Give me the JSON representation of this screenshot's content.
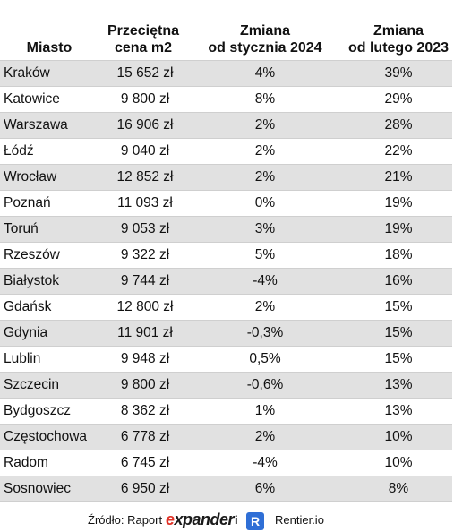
{
  "headers": {
    "city": "Miasto",
    "price_line1": "Przeciętna",
    "price_line2": "cena m2",
    "jan_line1": "Zmiana",
    "jan_line2": "od stycznia 2024",
    "feb_line1": "Zmiana",
    "feb_line2": "od lutego 2023"
  },
  "rows": [
    {
      "city": "Kraków",
      "price": "15 652 zł",
      "jan": "4%",
      "feb": "39%"
    },
    {
      "city": "Katowice",
      "price": "9 800 zł",
      "jan": "8%",
      "feb": "29%"
    },
    {
      "city": "Warszawa",
      "price": "16 906 zł",
      "jan": "2%",
      "feb": "28%"
    },
    {
      "city": "Łódź",
      "price": "9 040 zł",
      "jan": "2%",
      "feb": "22%"
    },
    {
      "city": "Wrocław",
      "price": "12 852 zł",
      "jan": "2%",
      "feb": "21%"
    },
    {
      "city": "Poznań",
      "price": "11 093 zł",
      "jan": "0%",
      "feb": "19%"
    },
    {
      "city": "Toruń",
      "price": "9 053 zł",
      "jan": "3%",
      "feb": "19%"
    },
    {
      "city": "Rzeszów",
      "price": "9 322 zł",
      "jan": "5%",
      "feb": "18%"
    },
    {
      "city": "Białystok",
      "price": "9 744 zł",
      "jan": "-4%",
      "feb": "16%"
    },
    {
      "city": "Gdańsk",
      "price": "12 800 zł",
      "jan": "2%",
      "feb": "15%"
    },
    {
      "city": "Gdynia",
      "price": "11 901 zł",
      "jan": "-0,3%",
      "feb": "15%"
    },
    {
      "city": "Lublin",
      "price": "9 948 zł",
      "jan": "0,5%",
      "feb": "15%"
    },
    {
      "city": "Szczecin",
      "price": "9 800 zł",
      "jan": "-0,6%",
      "feb": "13%"
    },
    {
      "city": "Bydgoszcz",
      "price": "8 362 zł",
      "jan": "1%",
      "feb": "13%"
    },
    {
      "city": "Częstochowa",
      "price": "6 778 zł",
      "jan": "2%",
      "feb": "10%"
    },
    {
      "city": "Radom",
      "price": "6 745 zł",
      "jan": "-4%",
      "feb": "10%"
    },
    {
      "city": "Sosnowiec",
      "price": "6 950 zł",
      "jan": "6%",
      "feb": "8%"
    }
  ],
  "footer": {
    "source_label": "Źródło: Raport",
    "expander_first": "e",
    "expander_rest": "xpander",
    "conjunction": "i",
    "rentier_logo_letter": "R",
    "rentier_name": "Rentier.io"
  },
  "colors": {
    "row_stripe": "#e1e1e1",
    "expander_accent": "#e03227",
    "rentier_blue": "#2f6fd6"
  }
}
